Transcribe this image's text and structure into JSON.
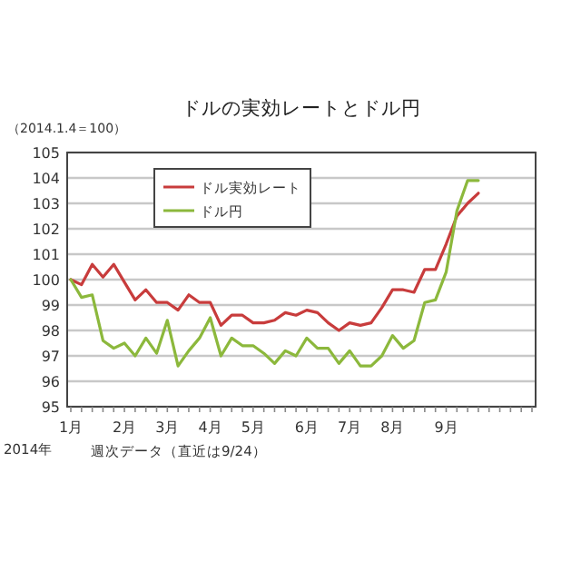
{
  "chart_data": {
    "type": "line",
    "title": "ドルの実効レートとドル円",
    "ylabel": "（2014.1.4＝100）",
    "categories": [
      "1月",
      null,
      null,
      null,
      null,
      "2月",
      null,
      null,
      null,
      "3月",
      null,
      null,
      null,
      "4月",
      null,
      null,
      null,
      "5月",
      null,
      null,
      null,
      null,
      "6月",
      null,
      null,
      null,
      "7月",
      null,
      null,
      null,
      "8月",
      null,
      null,
      null,
      null,
      "9月",
      null,
      null,
      null,
      null,
      null,
      null,
      null,
      null
    ],
    "series": [
      {
        "name": "ドル実効レート",
        "color": "#c83c3c",
        "values": [
          100,
          99.8,
          100.6,
          100.1,
          100.6,
          99.9,
          99.2,
          99.6,
          99.1,
          99.1,
          98.8,
          99.4,
          99.1,
          99.1,
          98.2,
          98.6,
          98.6,
          98.3,
          98.3,
          98.4,
          98.7,
          98.6,
          98.8,
          98.7,
          98.3,
          98.0,
          98.3,
          98.2,
          98.3,
          98.9,
          99.6,
          99.6,
          99.5,
          100.4,
          100.4,
          101.4,
          102.5,
          103.0,
          103.4,
          null,
          null,
          null,
          null,
          null
        ]
      },
      {
        "name": "ドル円",
        "color": "#8cb83c",
        "values": [
          100,
          99.3,
          99.4,
          97.6,
          97.3,
          97.5,
          97.0,
          97.7,
          97.1,
          98.4,
          96.6,
          97.2,
          97.7,
          98.5,
          97.0,
          97.7,
          97.4,
          97.4,
          97.1,
          96.7,
          97.2,
          97.0,
          97.7,
          97.3,
          97.3,
          96.7,
          97.2,
          96.6,
          96.6,
          97.0,
          97.8,
          97.3,
          97.6,
          99.1,
          99.2,
          100.3,
          102.7,
          103.9,
          103.9,
          null,
          null,
          null,
          null,
          null
        ]
      }
    ],
    "ylim": [
      95,
      105
    ],
    "yticks": [
      95,
      96,
      97,
      98,
      99,
      100,
      101,
      102,
      103,
      104,
      105
    ],
    "grid": "y",
    "legend": "top left",
    "marker": "none",
    "line_style": "solid",
    "annotations": [
      "2014年",
      "週次データ（直近は9/24）"
    ]
  }
}
